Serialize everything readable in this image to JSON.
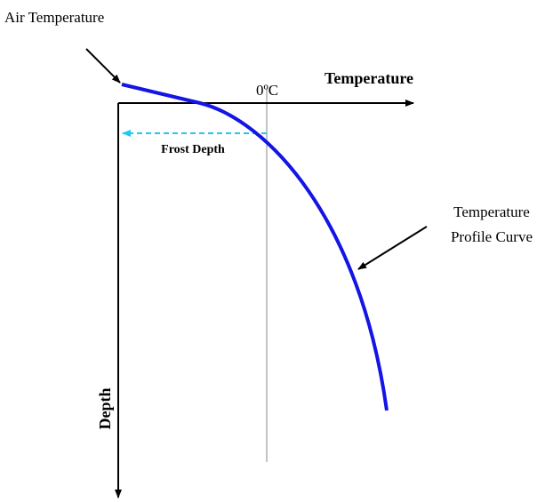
{
  "labels": {
    "air_temperature": "Air Temperature",
    "temperature_axis": "Temperature",
    "zero": "0ºC",
    "frost_depth": "Frost Depth",
    "profile_curve": [
      "Temperature",
      "Profile Curve"
    ],
    "depth_axis": "Depth"
  }
}
